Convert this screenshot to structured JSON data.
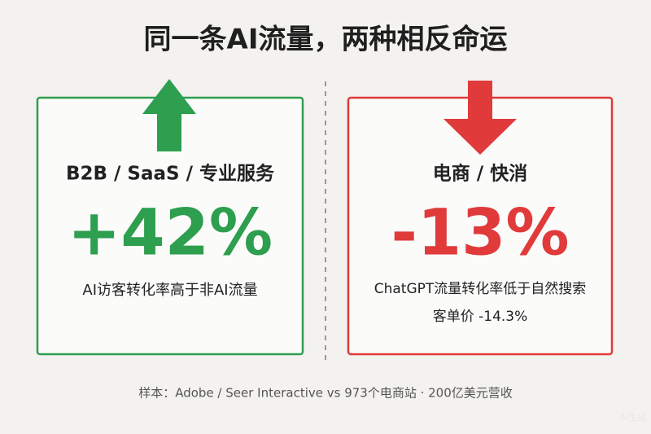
{
  "title": "同一条AI流量，两种相反命运",
  "panels": [
    {
      "category": "B2B / SaaS / 专业服务",
      "stat": "+42%",
      "lines": [
        "AI访客转化率高于非AI流量"
      ]
    },
    {
      "category": "电商 / 快消",
      "stat": "-13%",
      "lines": [
        "ChatGPT流量转化率低于自然搜索",
        "客单价 -14.3%"
      ]
    }
  ],
  "footer": "样本：Adobe / Seer Interactive vs 973个电商站 · 200亿美元营收",
  "watermark": "AI生成"
}
